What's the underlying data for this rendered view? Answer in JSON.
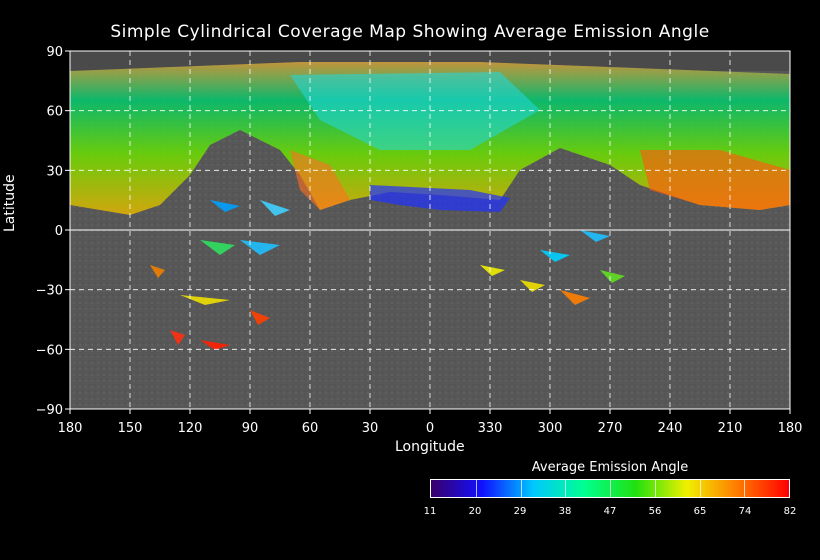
{
  "title": "Simple Cylindrical Coverage Map Showing Average Emission Angle",
  "map": {
    "xlabel": "Longitude",
    "ylabel": "Latitude",
    "x_ticks": [
      "180",
      "150",
      "120",
      "90",
      "60",
      "30",
      "0",
      "330",
      "300",
      "270",
      "240",
      "210",
      "180"
    ],
    "y_ticks": [
      "90",
      "60",
      "30",
      "0",
      "−30",
      "−60",
      "−90"
    ],
    "grid": "dashed white, 30 degree spacing",
    "base_color": "#5a5a5a"
  },
  "colorbar": {
    "title": "Average Emission Angle",
    "labels": [
      "11",
      "20",
      "29",
      "38",
      "47",
      "56",
      "65",
      "74",
      "82"
    ],
    "colors": [
      "#3a006a",
      "#1010ff",
      "#00c8ff",
      "#00ff90",
      "#20e010",
      "#f0f000",
      "#ff7a00",
      "#ff0000"
    ]
  }
}
